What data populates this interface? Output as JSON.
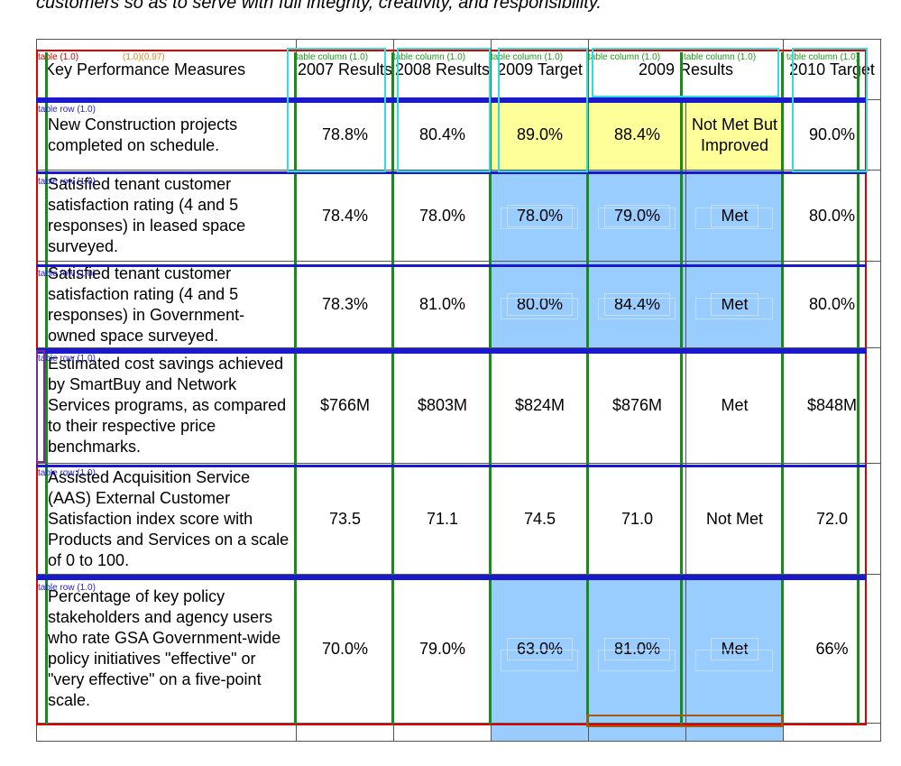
{
  "top_text": "customers so as to serve with full integrity, creativity, and responsibility.",
  "table": {
    "headers": [
      "Key Performance Measures",
      "2007 Results",
      "2008 Results",
      "2009 Target",
      "2009 Results",
      "",
      "2010 Target"
    ],
    "rows": [
      {
        "measure": "New Construction projects completed on schedule.",
        "y2007": "78.8%",
        "y2008": "80.4%",
        "t2009": "89.0%",
        "r2009": "88.4%",
        "status": "Not Met But Improved",
        "t2010": "90.0%",
        "highlight": "#ffff99"
      },
      {
        "measure": "Satisfied tenant customer satisfaction rating (4 and 5 responses) in leased space surveyed.",
        "y2007": "78.4%",
        "y2008": "78.0%",
        "t2009": "78.0%",
        "r2009": "79.0%",
        "status": "Met",
        "t2010": "80.0%",
        "highlight": "#99ccff"
      },
      {
        "measure": "Satisfied tenant customer satisfaction rating (4 and 5 responses) in Government-owned space surveyed.",
        "y2007": "78.3%",
        "y2008": "81.0%",
        "t2009": "80.0%",
        "r2009": "84.4%",
        "status": "Met",
        "t2010": "80.0%",
        "highlight": "#99ccff"
      },
      {
        "measure": "Estimated cost savings achieved by SmartBuy and Network Services programs, as compared to their respective price benchmarks.",
        "y2007": "$766M",
        "y2008": "$803M",
        "t2009": "$824M",
        "r2009": "$876M",
        "status": "Met",
        "t2010": "$848M",
        "highlight": ""
      },
      {
        "measure": "Assisted Acquisition Service (AAS) External Customer Satisfaction index score with Products and Services on a scale of 0 to 100.",
        "y2007": "73.5",
        "y2008": "71.1",
        "t2009": "74.5",
        "r2009": "71.0",
        "status": "Not Met",
        "t2010": "72.0",
        "highlight": ""
      },
      {
        "measure": "Percentage of key policy stakeholders and agency users who rate GSA Government-wide policy initiatives \"effective\" or \"very effective\" on a five-point scale.",
        "y2007": "70.0%",
        "y2008": "79.0%",
        "t2009": "63.0%",
        "r2009": "81.0%",
        "status": "Met",
        "t2010": "66%",
        "highlight": "#99ccff"
      }
    ]
  },
  "annotations": {
    "table_label": "table (1.0)",
    "table_label_orange": "(1.0)(0.97)",
    "column_label": "table column (1.0)",
    "row_label": "table row (1.0)"
  }
}
